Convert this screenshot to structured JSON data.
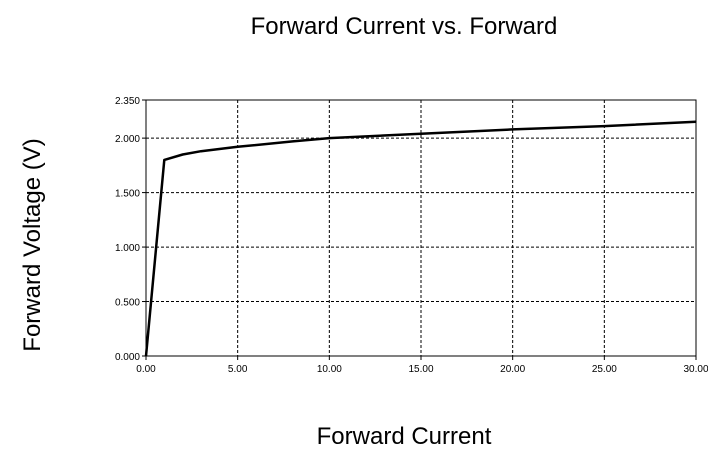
{
  "chart_data": {
    "type": "line",
    "title": "Forward Current vs. Forward",
    "xlabel": "Forward Current",
    "ylabel": "Forward Voltage (V)",
    "xlim": [
      0,
      30
    ],
    "ylim": [
      0,
      2.35
    ],
    "x_ticks": [
      0,
      5,
      10,
      15,
      20,
      25,
      30
    ],
    "x_tick_labels": [
      "0.00",
      "5.00",
      "10.00",
      "15.00",
      "20.00",
      "25.00",
      "30.00"
    ],
    "y_ticks": [
      0,
      0.5,
      1.0,
      1.5,
      2.0,
      2.35
    ],
    "y_tick_labels": [
      "0.000",
      "0.500",
      "1.000",
      "1.500",
      "2.000",
      "2.350"
    ],
    "grid": true,
    "series": [
      {
        "color": "#000000",
        "x": [
          0,
          1,
          2,
          3,
          5,
          8,
          10,
          15,
          20,
          25,
          30
        ],
        "y": [
          0,
          1.8,
          1.85,
          1.88,
          1.92,
          1.97,
          2.0,
          2.04,
          2.08,
          2.11,
          2.15
        ]
      }
    ]
  }
}
